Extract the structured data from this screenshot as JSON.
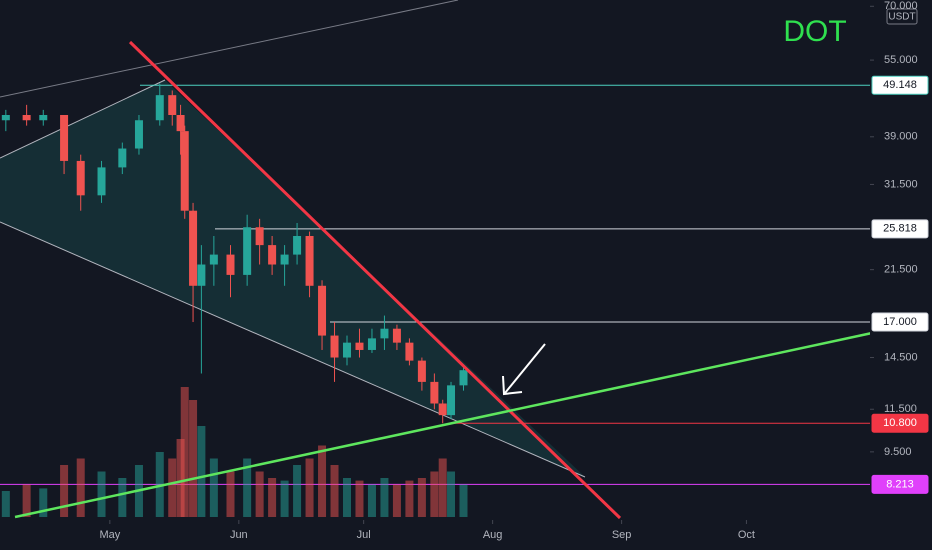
{
  "chart_data": {
    "type": "candlestick",
    "title": "DOT",
    "currency": "USDT",
    "log_scale": true,
    "up_color": "#26a69a",
    "down_color": "#ef5350",
    "x": [
      96,
      101,
      105,
      110,
      114,
      119,
      124,
      128,
      133,
      136,
      138,
      139,
      141,
      143,
      146,
      150,
      154,
      157,
      160,
      163,
      166,
      169,
      172,
      175,
      178,
      181,
      184,
      187,
      190,
      193,
      196,
      199,
      201,
      203,
      206
    ],
    "open": [
      42,
      43,
      42,
      43,
      35,
      30,
      34,
      37,
      42,
      47,
      43,
      40,
      28,
      20,
      22,
      23,
      21,
      26,
      24,
      22,
      23,
      25,
      20,
      16,
      14.5,
      15.5,
      15,
      15.8,
      16.5,
      15.5,
      14.3,
      13,
      11.8,
      11.2,
      12.8
    ],
    "high": [
      44,
      45,
      44,
      43,
      36,
      35,
      38,
      43,
      49.5,
      48,
      45,
      41,
      29,
      24,
      25,
      24,
      27.5,
      27,
      25,
      24,
      26.5,
      25.5,
      20.5,
      17,
      16,
      16.5,
      16.5,
      17.5,
      16.8,
      15.8,
      14.5,
      13.5,
      12,
      13,
      14
    ],
    "low": [
      40,
      41,
      41,
      33,
      28,
      29,
      33,
      36,
      41,
      41,
      36,
      27,
      17,
      13.5,
      20,
      19,
      20,
      22,
      21,
      20,
      22,
      19,
      15,
      13,
      14,
      14.5,
      14.8,
      15,
      15,
      14,
      12.5,
      11.5,
      10.8,
      11,
      12.5
    ],
    "close": [
      43,
      42,
      43,
      35,
      30,
      34,
      37,
      42,
      47,
      43,
      40,
      28,
      20,
      22,
      23,
      21,
      26,
      24,
      22,
      23,
      25,
      20,
      16,
      14.5,
      15.5,
      15,
      15.8,
      16.5,
      15.5,
      14.3,
      13,
      11.8,
      11.2,
      12.8,
      13.7
    ],
    "volume": [
      20,
      25,
      22,
      40,
      45,
      35,
      30,
      40,
      50,
      45,
      60,
      100,
      90,
      70,
      45,
      35,
      45,
      35,
      30,
      28,
      40,
      45,
      55,
      40,
      30,
      28,
      25,
      30,
      25,
      28,
      30,
      35,
      45,
      35,
      25
    ],
    "xlim": [
      94.6,
      303.7
    ],
    "xticks": [
      {
        "value": 121,
        "label": "May"
      },
      {
        "value": 152,
        "label": "Jun"
      },
      {
        "value": 182,
        "label": "Jul"
      },
      {
        "value": 213,
        "label": "Aug"
      },
      {
        "value": 244,
        "label": "Sep"
      },
      {
        "value": 274,
        "label": "Oct"
      }
    ],
    "ylim": [
      7,
      72
    ],
    "yticks": [
      {
        "value": 70,
        "label": "70.000"
      },
      {
        "value": 55,
        "label": "55.000"
      },
      {
        "value": 39,
        "label": "39.000"
      },
      {
        "value": 31.5,
        "label": "31.500"
      },
      {
        "value": 21.5,
        "label": "21.500"
      },
      {
        "value": 14.5,
        "label": "14.500"
      },
      {
        "value": 11.5,
        "label": "11.500"
      },
      {
        "value": 9.5,
        "label": "9.500"
      }
    ],
    "levels": [
      {
        "value": 49.148,
        "label": "49.148",
        "color": "#4dd0c0"
      },
      {
        "value": 25.818,
        "label": "25.818",
        "color": "#d1d4dc"
      },
      {
        "value": 17,
        "label": "17.000",
        "color": "#d1d4dc"
      },
      {
        "value": 10.8,
        "label": "10.800",
        "color": "#f23645"
      },
      {
        "value": 8.213,
        "label": "8.213",
        "color": "#e040fb"
      }
    ]
  }
}
